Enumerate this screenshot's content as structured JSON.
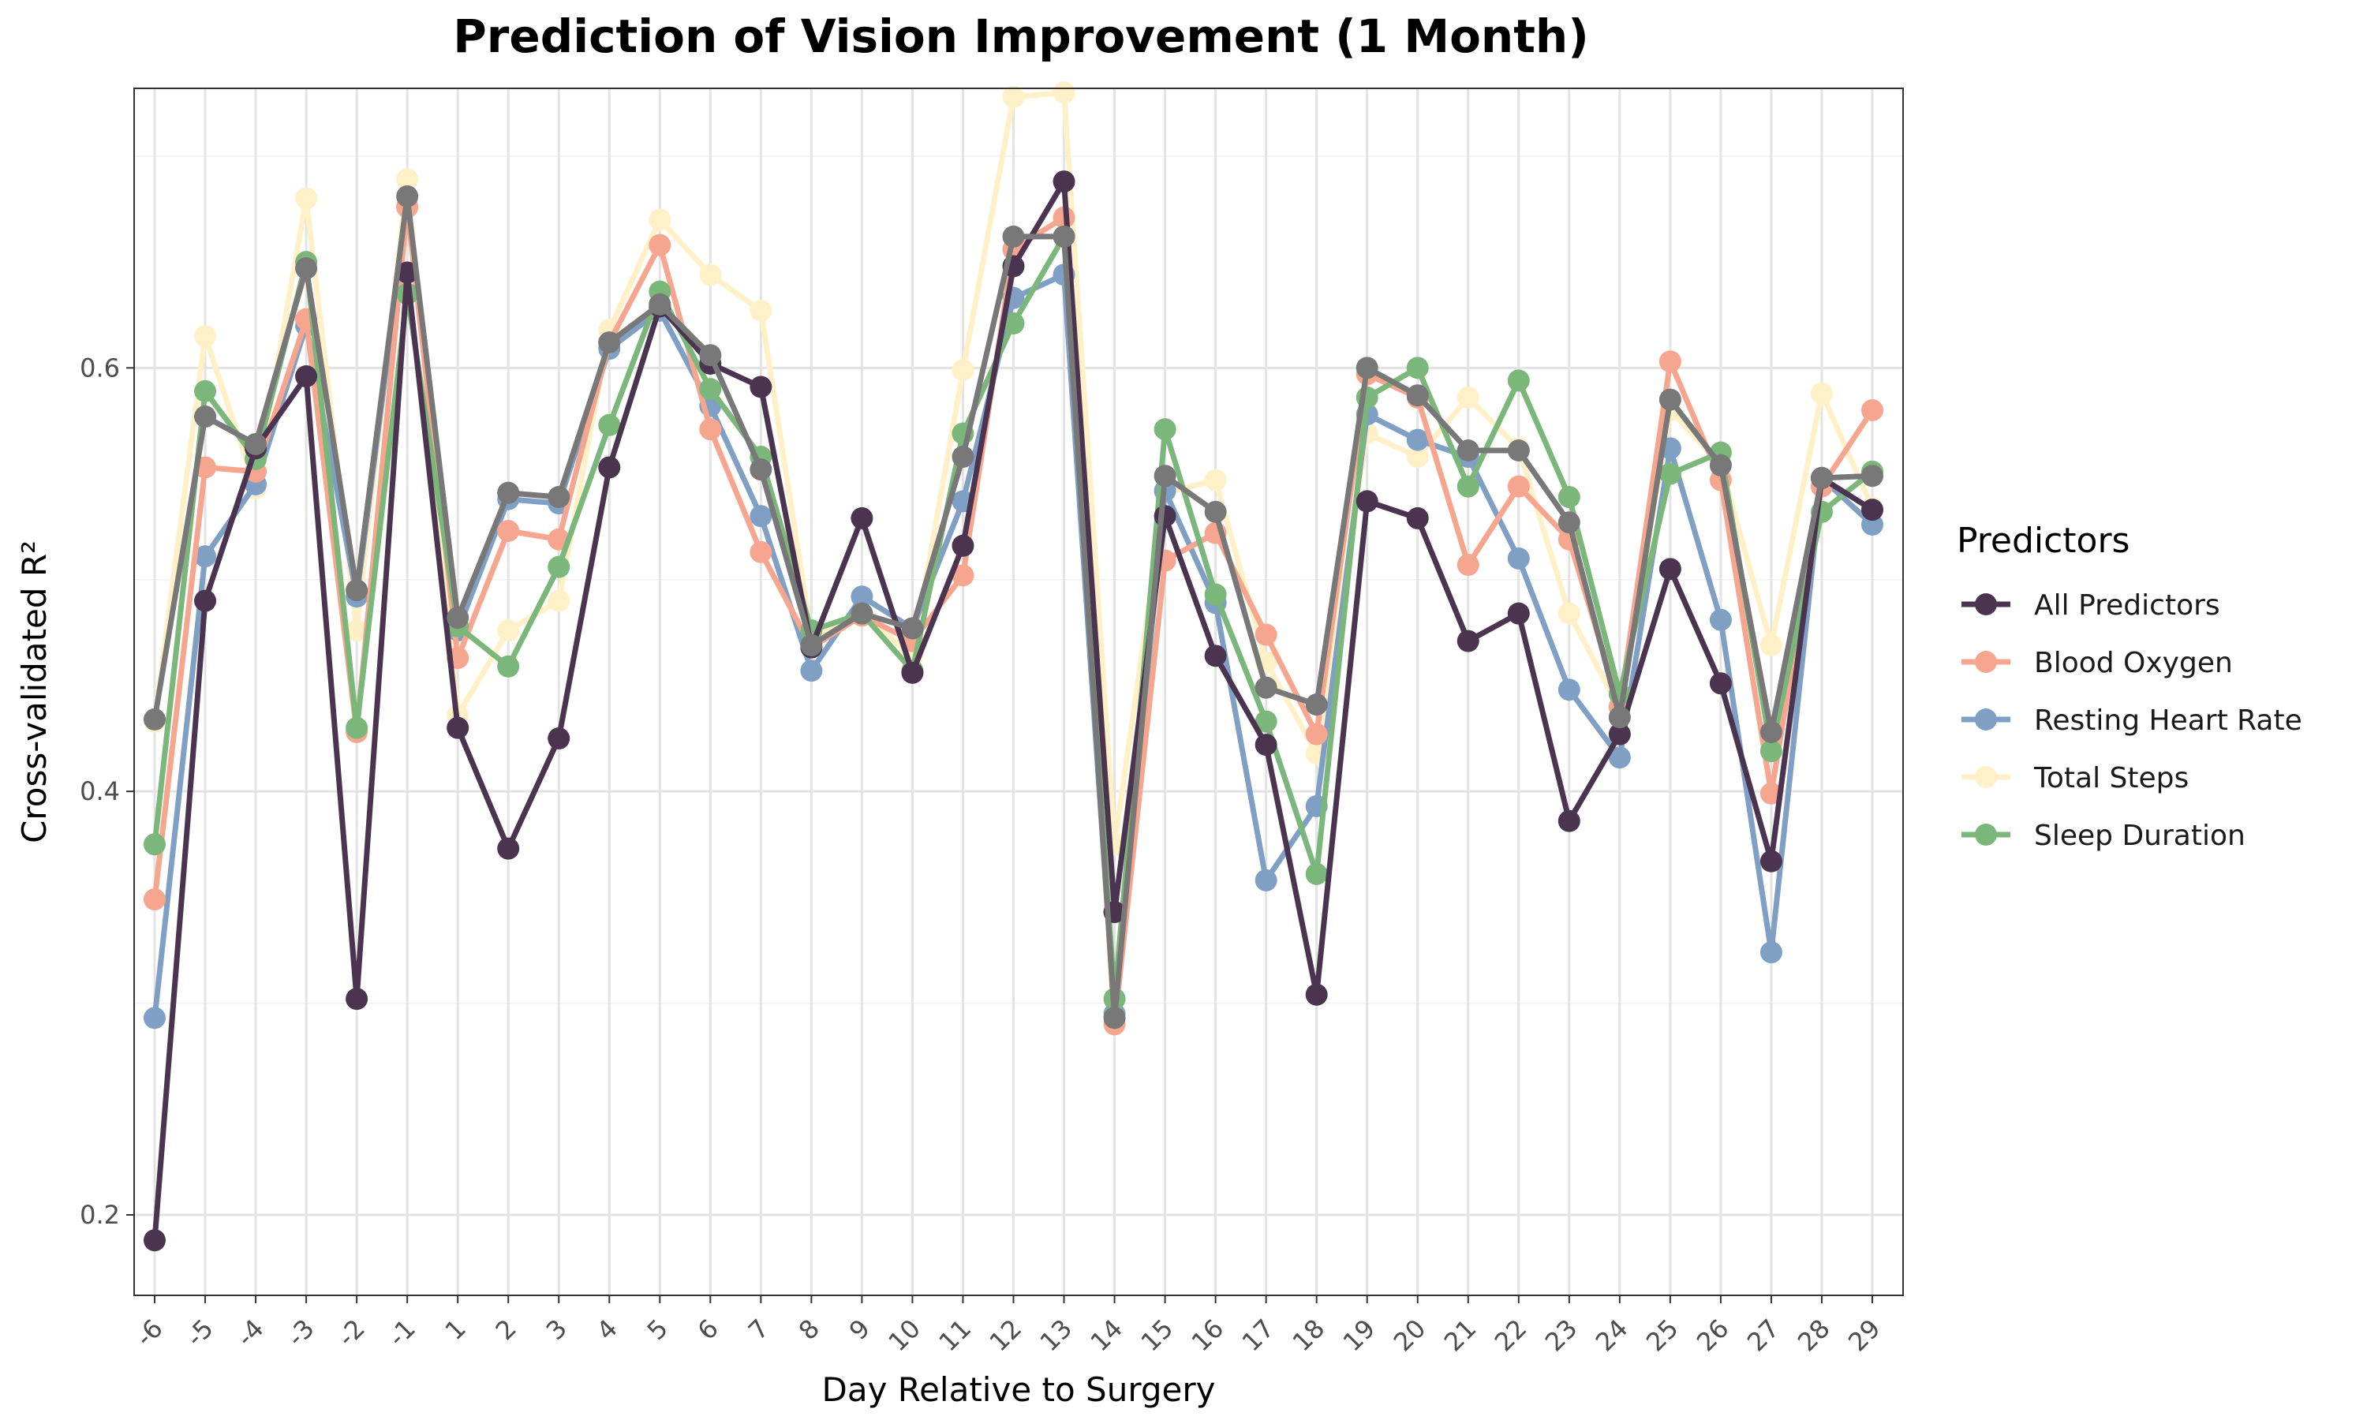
{
  "chart_data": {
    "type": "line",
    "title": "Prediction of Vision Improvement (1 Month)",
    "xlabel": "Day Relative to Surgery",
    "ylabel": "Cross-validated R²",
    "categories": [
      "-6",
      "-5",
      "-4",
      "-3",
      "-2",
      "-1",
      "1",
      "2",
      "3",
      "4",
      "5",
      "6",
      "7",
      "8",
      "9",
      "10",
      "11",
      "12",
      "13",
      "14",
      "15",
      "16",
      "17",
      "18",
      "19",
      "20",
      "21",
      "22",
      "23",
      "24",
      "25",
      "26",
      "27",
      "28",
      "29"
    ],
    "ylim": [
      0.162,
      0.732
    ],
    "yticks": [
      0.2,
      0.4,
      0.6
    ],
    "ytick_labels": [
      "0.2",
      "0.4",
      "0.6"
    ],
    "grid": true,
    "legend": {
      "title": "Predictors",
      "position": "right"
    },
    "series": [
      {
        "name": "Total Steps",
        "color": "#FFF0C8",
        "values": [
          0.433,
          0.615,
          0.543,
          0.68,
          0.476,
          0.689,
          0.436,
          0.476,
          0.49,
          0.618,
          0.67,
          0.644,
          0.627,
          0.473,
          0.484,
          0.464,
          0.599,
          0.728,
          0.73,
          0.375,
          0.541,
          0.547,
          0.461,
          0.418,
          0.569,
          0.558,
          0.586,
          0.562,
          0.484,
          0.439,
          0.58,
          0.554,
          0.469,
          0.588,
          0.534
        ]
      },
      {
        "name": "Resting Heart Rate",
        "color": "#7FA0C4",
        "values": [
          0.293,
          0.511,
          0.545,
          0.62,
          0.492,
          0.676,
          0.476,
          0.538,
          0.536,
          0.609,
          0.627,
          0.582,
          0.53,
          0.457,
          0.492,
          0.477,
          0.537,
          0.633,
          0.644,
          0.295,
          0.542,
          0.489,
          0.358,
          0.393,
          0.578,
          0.566,
          0.558,
          0.51,
          0.448,
          0.416,
          0.562,
          0.481,
          0.324,
          0.548,
          0.526
        ]
      },
      {
        "name": "Blood Oxygen",
        "color": "#F6A58E",
        "values": [
          0.349,
          0.553,
          0.551,
          0.623,
          0.428,
          0.676,
          0.463,
          0.523,
          0.519,
          0.612,
          0.658,
          0.571,
          0.513,
          0.468,
          0.483,
          0.471,
          0.502,
          0.656,
          0.671,
          0.29,
          0.509,
          0.522,
          0.474,
          0.427,
          0.597,
          0.586,
          0.507,
          0.544,
          0.519,
          0.44,
          0.603,
          0.547,
          0.399,
          0.544,
          0.58
        ]
      },
      {
        "name": "Sleep Duration",
        "color": "#7BB67A",
        "values": [
          0.375,
          0.589,
          0.557,
          0.65,
          0.43,
          0.635,
          0.478,
          0.459,
          0.506,
          0.573,
          0.636,
          0.59,
          0.558,
          0.476,
          0.484,
          0.457,
          0.569,
          0.621,
          0.662,
          0.302,
          0.571,
          0.493,
          0.433,
          0.361,
          0.586,
          0.6,
          0.544,
          0.594,
          0.539,
          0.446,
          0.55,
          0.56,
          0.419,
          0.532,
          0.551
        ]
      },
      {
        "name": "All Predictors",
        "color": "#4A3450",
        "values": [
          0.188,
          0.49,
          0.562,
          0.596,
          0.302,
          0.645,
          0.43,
          0.373,
          0.425,
          0.553,
          0.629,
          0.602,
          0.591,
          0.468,
          0.529,
          0.456,
          0.516,
          0.648,
          0.688,
          0.343,
          0.53,
          0.464,
          0.422,
          0.304,
          0.537,
          0.529,
          0.471,
          0.484,
          0.386,
          0.427,
          0.505,
          0.451,
          0.367,
          0.548,
          0.533
        ]
      },
      {
        "color": "#787878",
        "in_legend": false,
        "values": [
          0.434,
          0.577,
          0.564,
          0.647,
          0.495,
          0.681,
          0.482,
          0.541,
          0.539,
          0.612,
          0.63,
          0.606,
          0.552,
          0.469,
          0.484,
          0.477,
          0.558,
          0.662,
          0.662,
          0.293,
          0.549,
          0.532,
          0.449,
          0.441,
          0.6,
          0.587,
          0.561,
          0.561,
          0.527,
          0.435,
          0.585,
          0.554,
          0.428,
          0.548,
          0.549
        ]
      }
    ],
    "legend_order": [
      "All Predictors",
      "Blood Oxygen",
      "Resting Heart Rate",
      "Total Steps",
      "Sleep Duration"
    ]
  }
}
